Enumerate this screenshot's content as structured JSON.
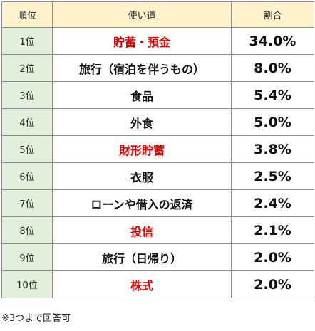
{
  "header": {
    "rank": "順位",
    "use": "使い道",
    "share": "割合"
  },
  "rows": [
    {
      "rank": "1位",
      "use": "貯蓄・預金",
      "share": "34.0%",
      "highlight": true
    },
    {
      "rank": "2位",
      "use": "旅行（宿泊を伴うもの）",
      "share": "8.0%",
      "highlight": false
    },
    {
      "rank": "3位",
      "use": "食品",
      "share": "5.4%",
      "highlight": false
    },
    {
      "rank": "4位",
      "use": "外食",
      "share": "5.0%",
      "highlight": false
    },
    {
      "rank": "5位",
      "use": "財形貯蓄",
      "share": "3.8%",
      "highlight": true
    },
    {
      "rank": "6位",
      "use": "衣服",
      "share": "2.5%",
      "highlight": false
    },
    {
      "rank": "7位",
      "use": "ローンや借入の返済",
      "share": "2.4%",
      "highlight": false
    },
    {
      "rank": "8位",
      "use": "投信",
      "share": "2.1%",
      "highlight": true
    },
    {
      "rank": "9位",
      "use": "旅行（日帰り）",
      "share": "2.0%",
      "highlight": false
    },
    {
      "rank": "10位",
      "use": "株式",
      "share": "2.0%",
      "highlight": true
    }
  ],
  "note": "※3つまで回答可",
  "colors": {
    "header_bg": "#fff2cc",
    "rank_bg": "#e2efda",
    "highlight_text": "#e00000",
    "border": "#8c8c8c"
  }
}
